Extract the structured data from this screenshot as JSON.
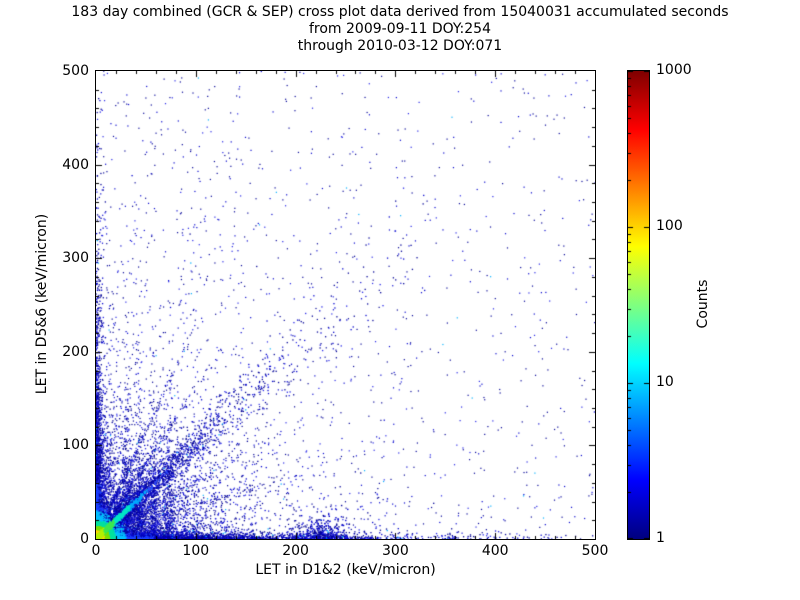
{
  "title": {
    "line1": "183 day combined (GCR & SEP) cross plot data derived from 15040031 accumulated seconds",
    "line2": "from 2009-09-11 DOY:254",
    "line3": "through 2010-03-12 DOY:071"
  },
  "axes": {
    "x": {
      "label": "LET in D1&2 (keV/micron)",
      "ticks": [
        "0",
        "100",
        "200",
        "300",
        "400",
        "500"
      ],
      "tick_values": [
        0,
        100,
        200,
        300,
        400,
        500
      ],
      "range": [
        0,
        500
      ]
    },
    "y": {
      "label": "LET in D5&6 (keV/micron)",
      "ticks": [
        "0",
        "100",
        "200",
        "300",
        "400",
        "500"
      ],
      "tick_values": [
        0,
        100,
        200,
        300,
        400,
        500
      ],
      "range": [
        0,
        500
      ]
    }
  },
  "colorbar": {
    "label": "Counts",
    "scale": "log",
    "colormap": "jet",
    "ticks": [
      {
        "label": "1",
        "value": 1
      },
      {
        "label": "10",
        "value": 10
      },
      {
        "label": "100",
        "value": 100
      },
      {
        "label": "1000",
        "value": 1000
      }
    ],
    "stops": [
      {
        "p": 0,
        "c": "#00007f"
      },
      {
        "p": 0.125,
        "c": "#0000ff"
      },
      {
        "p": 0.375,
        "c": "#00ffff"
      },
      {
        "p": 0.625,
        "c": "#ffff00"
      },
      {
        "p": 0.875,
        "c": "#ff0000"
      },
      {
        "p": 1,
        "c": "#7f0000"
      }
    ]
  },
  "chart_data": {
    "type": "scatter",
    "subtype": "2d-histogram-cross-plot",
    "title": "183 day combined (GCR & SEP) cross plot data derived from 15040031 accumulated seconds",
    "subtitle_from": "from 2009-09-11 DOY:254",
    "subtitle_through": "through 2010-03-12 DOY:071",
    "xlabel": "LET in D1&2 (keV/micron)",
    "ylabel": "LET in D5&6 (keV/micron)",
    "xlim": [
      0,
      500
    ],
    "ylim": [
      0,
      500
    ],
    "color_scale": {
      "label": "Counts",
      "scale": "log",
      "range": [
        1,
        1000
      ],
      "colormap": "jet"
    },
    "description": "Dense hot region (100-1000 counts, red/orange/yellow) at the origin below ~10 keV/micron; bright green-cyan ridge along y=x up to ~60 keV/micron; broad blue diagonal band extending toward (300,300); fan-like diagonal streaks above and below the main diagonal; thin vertical striations near x=30-75; dense single-count bands hugging both axes out to 500; sparse dark-blue single-count events across the whole plane, denser at low LET; small blue cluster near (228,12).",
    "populations": [
      {
        "name": "sparse-uniform",
        "n": 700,
        "x": {
          "d": "u",
          "a": 0,
          "b": 500
        },
        "y": {
          "d": "u",
          "a": 0,
          "b": 500
        },
        "color": "blues",
        "size": 1.2
      },
      {
        "name": "sparse-left-weighted",
        "n": 1400,
        "x": {
          "d": "e",
          "s": 130,
          "c": 500
        },
        "y": {
          "d": "e",
          "s": 170,
          "c": 500
        },
        "color": "blues",
        "size": 1.2
      },
      {
        "name": "low-left-cloud",
        "n": 3200,
        "x": {
          "d": "e",
          "s": 42,
          "c": 500
        },
        "y": {
          "d": "e",
          "s": 34,
          "c": 500
        },
        "color": "blues",
        "size": 1.3
      },
      {
        "name": "diagonal-band",
        "n": 2400,
        "x": {
          "d": "e",
          "s": 60,
          "c": 340
        },
        "diag": true,
        "slope": 1,
        "ysig0": 3,
        "ysigk": 0.09,
        "color": "blues",
        "size": 1.3
      },
      {
        "name": "fan-slope-1p6",
        "n": 450,
        "x": {
          "d": "e",
          "s": 35,
          "c": 130
        },
        "diag": true,
        "slope": 1.6,
        "ysig0": 3,
        "color": "blues",
        "size": 1.2
      },
      {
        "name": "fan-slope-2p3",
        "n": 350,
        "x": {
          "d": "e",
          "s": 28,
          "c": 100
        },
        "diag": true,
        "slope": 2.3,
        "ysig0": 3,
        "color": "blues",
        "size": 1.2
      },
      {
        "name": "fan-slope-0p6",
        "n": 420,
        "x": {
          "d": "e",
          "s": 50,
          "c": 260
        },
        "diag": true,
        "slope": 0.6,
        "ysig0": 3,
        "color": "blues",
        "size": 1.2
      },
      {
        "name": "fan-slope-0p35",
        "n": 320,
        "x": {
          "d": "e",
          "s": 60,
          "c": 300
        },
        "diag": true,
        "slope": 0.35,
        "ysig0": 3,
        "color": "blues",
        "size": 1.2
      },
      {
        "name": "striation-x31",
        "n": 280,
        "x": {
          "d": "g",
          "m": 31,
          "s": 2.2
        },
        "y": {
          "d": "e",
          "s": 60,
          "c": 220
        },
        "color": "blues",
        "size": 1.2
      },
      {
        "name": "striation-x44",
        "n": 260,
        "x": {
          "d": "g",
          "m": 44,
          "s": 2.2
        },
        "y": {
          "d": "e",
          "s": 55,
          "c": 210
        },
        "color": "blues",
        "size": 1.2
      },
      {
        "name": "striation-x58",
        "n": 240,
        "x": {
          "d": "g",
          "m": 58,
          "s": 2.4
        },
        "y": {
          "d": "e",
          "s": 52,
          "c": 200
        },
        "color": "blues",
        "size": 1.2
      },
      {
        "name": "striation-x73",
        "n": 220,
        "x": {
          "d": "g",
          "m": 73,
          "s": 2.6
        },
        "y": {
          "d": "e",
          "s": 48,
          "c": 190
        },
        "color": "blues",
        "size": 1.2
      },
      {
        "name": "left-axis-band",
        "n": 2300,
        "x": {
          "d": "e",
          "s": 2.8,
          "c": 25
        },
        "y": {
          "d": "e",
          "s": 80,
          "c": 500
        },
        "color": "blues",
        "size": 1.3
      },
      {
        "name": "bottom-axis-band",
        "n": 2600,
        "x": {
          "d": "e",
          "s": 95,
          "c": 500
        },
        "y": {
          "d": "e",
          "s": 2.8,
          "c": 25
        },
        "color": "blues",
        "size": 1.3
      },
      {
        "name": "cluster-x228",
        "n": 330,
        "x": {
          "d": "g",
          "m": 228,
          "s": 13
        },
        "y": {
          "d": "e",
          "s": 8,
          "c": 40
        },
        "color": "blues",
        "size": 1.4
      },
      {
        "name": "left-edge-hot",
        "n": 500,
        "x": {
          "d": "e",
          "s": 1.5,
          "c": 6
        },
        "y": {
          "d": "e",
          "s": 25,
          "c": 60
        },
        "color": "hot",
        "size": 1.4
      },
      {
        "name": "bottom-edge-hot",
        "n": 500,
        "x": {
          "d": "e",
          "s": 25,
          "c": 60
        },
        "y": {
          "d": "e",
          "s": 1.5,
          "c": 6
        },
        "color": "hot",
        "size": 1.4
      },
      {
        "name": "origin-hot-core",
        "n": 5500,
        "x": {
          "d": "e",
          "s": 5.2,
          "c": 55
        },
        "y": {
          "d": "e",
          "s": 5.2,
          "c": 55
        },
        "color": "hot",
        "size": 1.5
      },
      {
        "name": "bright-diagonal-ridge",
        "n": 1100,
        "x": {
          "d": "e",
          "s": 15,
          "c": 72
        },
        "diag": true,
        "slope": 1,
        "ysig0": 1.6,
        "color": "dhot",
        "size": 1.6
      }
    ]
  }
}
